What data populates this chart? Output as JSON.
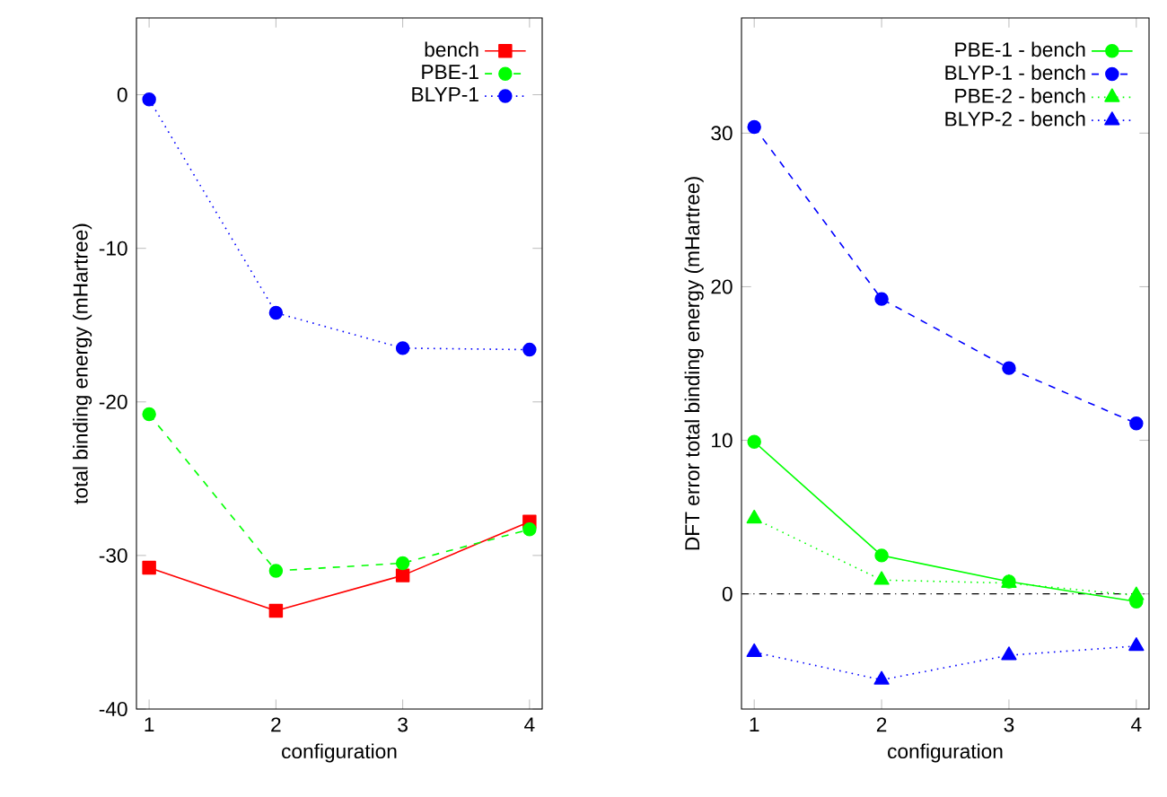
{
  "chart_data": [
    {
      "type": "line",
      "xlabel": "configuration",
      "ylabel": "total binding energy (mHartree)",
      "x": [
        1,
        2,
        3,
        4
      ],
      "xlim": [
        0.9,
        4.1
      ],
      "xticks": [
        1,
        2,
        3,
        4
      ],
      "ylim": [
        -40,
        5
      ],
      "yticks": [
        -40,
        -30,
        -20,
        -10,
        0
      ],
      "legend": "top right",
      "series": [
        {
          "name": "bench",
          "color": "#ff0000",
          "marker": "square",
          "line_style": "solid",
          "values": [
            -30.8,
            -33.6,
            -31.3,
            -27.8
          ]
        },
        {
          "name": "PBE-1",
          "color": "#00ff00",
          "marker": "circle",
          "line_style": "dashed",
          "values": [
            -20.8,
            -31.0,
            -30.5,
            -28.3
          ]
        },
        {
          "name": "BLYP-1",
          "color": "#0000ff",
          "marker": "circle",
          "line_style": "dotted",
          "values": [
            -0.3,
            -14.2,
            -16.5,
            -16.6
          ]
        }
      ]
    },
    {
      "type": "line",
      "xlabel": "configuration",
      "ylabel": "DFT error total binding energy (mHartree)",
      "x": [
        1,
        2,
        3,
        4
      ],
      "xlim": [
        0.9,
        4.1
      ],
      "xticks": [
        1,
        2,
        3,
        4
      ],
      "ylim": [
        -7.5,
        37.5
      ],
      "yticks": [
        0,
        10,
        20,
        30
      ],
      "legend": "top right",
      "ref_lines": [
        {
          "axis": "y",
          "value": 0,
          "color": "#000000",
          "line_style": "dashdot"
        }
      ],
      "series": [
        {
          "name": "PBE-1 - bench",
          "color": "#00ff00",
          "marker": "circle",
          "line_style": "solid",
          "values": [
            9.9,
            2.5,
            0.8,
            -0.5
          ]
        },
        {
          "name": "BLYP-1 - bench",
          "color": "#0000ff",
          "marker": "circle",
          "line_style": "dashed",
          "values": [
            30.4,
            19.2,
            14.7,
            11.1
          ]
        },
        {
          "name": "PBE-2 - bench",
          "color": "#00ff00",
          "marker": "triangle",
          "line_style": "dotted",
          "values": [
            4.9,
            0.9,
            0.7,
            -0.1
          ]
        },
        {
          "name": "BLYP-2 - bench",
          "color": "#0000ff",
          "marker": "triangle",
          "line_style": "dotted",
          "values": [
            -3.8,
            -5.6,
            -4.0,
            -3.4
          ]
        }
      ]
    }
  ]
}
